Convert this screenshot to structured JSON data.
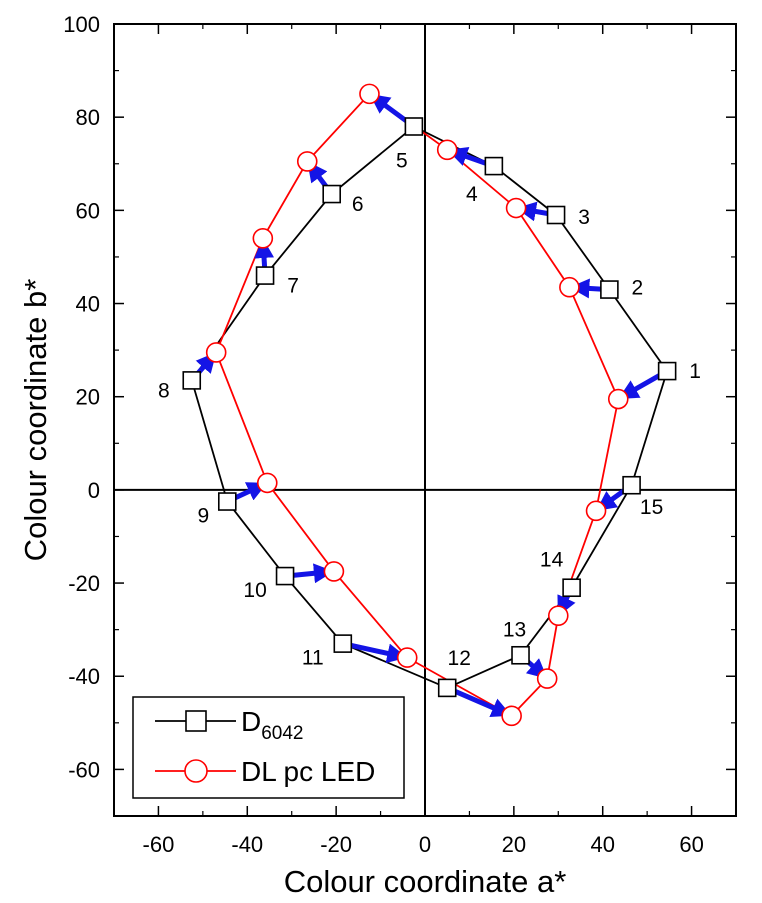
{
  "chart_data": {
    "type": "scatter",
    "xlabel": "Colour coordinate a*",
    "ylabel": "Colour coordinate b*",
    "xlim": [
      -70,
      70
    ],
    "ylim": [
      -70,
      100
    ],
    "xticks": [
      -60,
      -40,
      -20,
      0,
      20,
      40,
      60
    ],
    "yticks": [
      -60,
      -40,
      -20,
      0,
      20,
      40,
      60,
      80,
      100
    ],
    "x_tick_labels": [
      "-60",
      "-40",
      "-20",
      "0",
      "20",
      "40",
      "60"
    ],
    "y_tick_labels": [
      "-60",
      "-40",
      "-20",
      "0",
      "20",
      "40",
      "60",
      "80",
      "100"
    ],
    "zero_lines": true,
    "legend_position": "bottom-left",
    "series": [
      {
        "name": "D6042",
        "name_main": "D",
        "name_sub": "6042",
        "marker": "square",
        "color": "#000000",
        "x": [
          54.5,
          41.5,
          29.5,
          15.5,
          -2.5,
          -21,
          -36,
          -52.5,
          -44.5,
          -31.5,
          -18.5,
          5,
          21.5,
          33,
          46.5
        ],
        "y": [
          25.5,
          43,
          59,
          69.5,
          78,
          63.5,
          46,
          23.5,
          -2.5,
          -18.5,
          -33,
          -42.5,
          -35.5,
          -21,
          1
        ]
      },
      {
        "name": "DL pc LED",
        "marker": "circle",
        "color": "#ff0000",
        "x": [
          43.5,
          32.5,
          20.5,
          5,
          -12.5,
          -26.5,
          -36.5,
          -47,
          -35.5,
          -20.5,
          -4,
          19.5,
          27.5,
          30,
          38.5
        ],
        "y": [
          19.5,
          43.5,
          60.5,
          73,
          85,
          70.5,
          54,
          29.5,
          1.5,
          -17.5,
          -36,
          -48.5,
          -40.5,
          -27,
          -4.5
        ]
      }
    ],
    "shift_arrows": {
      "color": "#1414e6",
      "from_series": "D6042",
      "to_series": "DL pc LED"
    },
    "point_labels": [
      "1",
      "2",
      "3",
      "4",
      "5",
      "6",
      "7",
      "8",
      "9",
      "10",
      "11",
      "12",
      "13",
      "14",
      "15"
    ]
  }
}
